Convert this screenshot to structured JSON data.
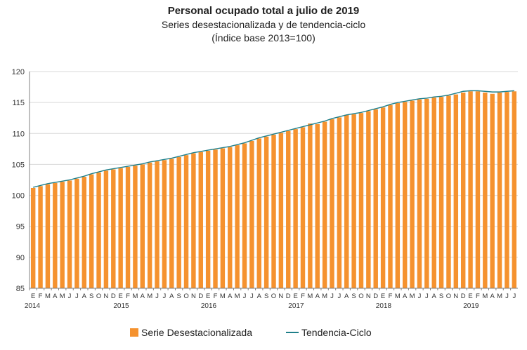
{
  "header": {
    "title": "Personal ocupado total a julio de 2019",
    "subtitle": "Series desestacionalizada  y de tendencia-ciclo",
    "subtitle2": "(Índice base 2013=100)"
  },
  "colors": {
    "bar": "#F5922F",
    "line": "#1F7F8A",
    "grid": "#d9d9d9",
    "axis": "#808080"
  },
  "legend": {
    "bar_label": "Serie Desestacionalizada",
    "line_label": "Tendencia-Ciclo"
  },
  "chart_data": {
    "type": "bar",
    "title": "Personal ocupado total a julio de 2019",
    "ylim": [
      85,
      120
    ],
    "yticks": [
      85,
      90,
      95,
      100,
      105,
      110,
      115,
      120
    ],
    "month_letters": [
      "E",
      "F",
      "M",
      "A",
      "M",
      "J",
      "J",
      "A",
      "S",
      "O",
      "N",
      "D"
    ],
    "years": [
      "2014",
      "2015",
      "2016",
      "2017",
      "2018",
      "2019"
    ],
    "grid": true,
    "legend_position": "bottom",
    "series": [
      {
        "name": "Serie Desestacionalizada",
        "type": "bar",
        "values": [
          101.2,
          101.5,
          101.8,
          102.0,
          102.2,
          102.4,
          102.7,
          103.0,
          103.4,
          103.7,
          104.0,
          104.2,
          104.4,
          104.6,
          104.8,
          105.0,
          105.3,
          105.5,
          105.7,
          105.9,
          106.2,
          106.5,
          106.8,
          107.0,
          107.2,
          107.4,
          107.6,
          107.8,
          108.1,
          108.4,
          108.8,
          109.2,
          109.5,
          109.8,
          110.1,
          110.4,
          110.7,
          111.0,
          111.6,
          111.5,
          111.9,
          112.3,
          112.6,
          113.0,
          113.1,
          113.3,
          113.6,
          113.9,
          114.2,
          114.6,
          114.9,
          115.1,
          115.3,
          115.5,
          115.6,
          115.8,
          115.9,
          116.1,
          116.3,
          116.6,
          116.8,
          116.8,
          116.6,
          116.4,
          116.6,
          116.7,
          116.8
        ]
      },
      {
        "name": "Tendencia-Ciclo",
        "type": "line",
        "values": [
          101.3,
          101.6,
          101.9,
          102.1,
          102.3,
          102.5,
          102.8,
          103.1,
          103.5,
          103.8,
          104.1,
          104.3,
          104.5,
          104.7,
          104.9,
          105.1,
          105.4,
          105.6,
          105.8,
          106.0,
          106.3,
          106.6,
          106.9,
          107.1,
          107.3,
          107.5,
          107.7,
          107.9,
          108.2,
          108.5,
          108.9,
          109.3,
          109.6,
          109.9,
          110.2,
          110.5,
          110.8,
          111.1,
          111.4,
          111.7,
          112.0,
          112.4,
          112.7,
          113.0,
          113.2,
          113.4,
          113.7,
          114.0,
          114.3,
          114.7,
          115.0,
          115.2,
          115.4,
          115.6,
          115.7,
          115.9,
          116.0,
          116.2,
          116.5,
          116.8,
          116.9,
          116.9,
          116.8,
          116.7,
          116.7,
          116.8,
          116.9
        ]
      }
    ]
  }
}
